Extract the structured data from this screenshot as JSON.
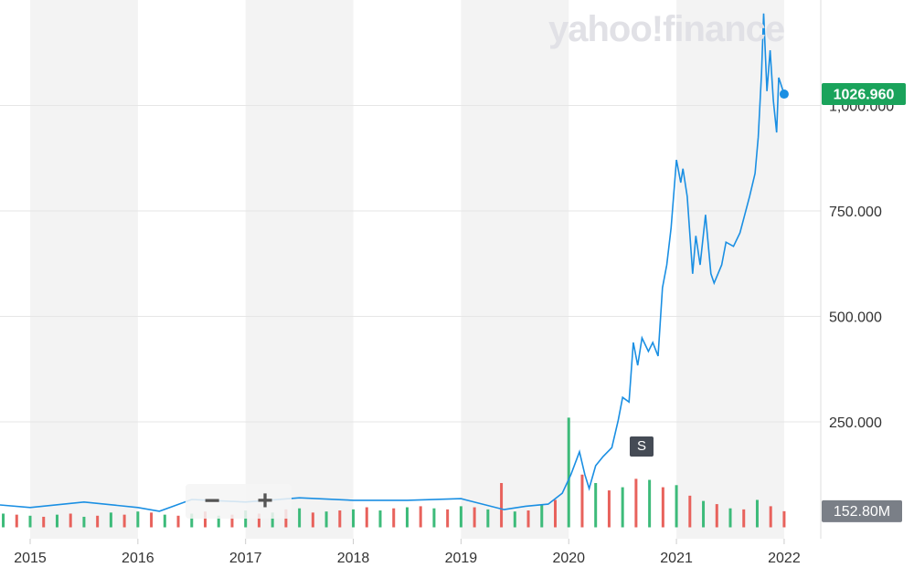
{
  "logo": "yahoo!finance",
  "zoom_controls": [
    "−",
    "+"
  ],
  "annotation": "S",
  "chart_data": {
    "type": "line",
    "xlim": [
      2014.72,
      2022.34
    ],
    "xticks": [
      2015,
      2016,
      2017,
      2018,
      2019,
      2020,
      2021,
      2022
    ],
    "ylim": [
      0,
      1250
    ],
    "yticks": [
      {
        "value": 250,
        "label": "250.000"
      },
      {
        "value": 500,
        "label": "500.000"
      },
      {
        "value": 750,
        "label": "750.000"
      },
      {
        "value": 1000,
        "label": "1,000.000"
      }
    ],
    "grid": true,
    "series": [
      {
        "color": "#1a8fe3",
        "last_label": "1026.960",
        "label_color": "#1aa35b",
        "x": [
          2014.72,
          2015.0,
          2015.5,
          2016.0,
          2016.2,
          2016.5,
          2017.0,
          2017.5,
          2018.0,
          2018.5,
          2019.0,
          2019.4,
          2019.6,
          2019.81,
          2019.94,
          2020.02,
          2020.1,
          2020.15,
          2020.19,
          2020.25,
          2020.32,
          2020.4,
          2020.46,
          2020.5,
          2020.56,
          2020.6,
          2020.64,
          2020.68,
          2020.74,
          2020.78,
          2020.83,
          2020.87,
          2020.91,
          2020.95,
          2021.0,
          2021.04,
          2021.06,
          2021.1,
          2021.15,
          2021.18,
          2021.22,
          2021.27,
          2021.32,
          2021.35,
          2021.42,
          2021.46,
          2021.53,
          2021.59,
          2021.68,
          2021.73,
          2021.76,
          2021.79,
          2021.81,
          2021.84,
          2021.87,
          2021.9,
          2021.93,
          2021.95,
          2022.0
        ],
        "values": [
          53,
          47,
          60,
          47,
          38,
          66,
          60,
          70,
          64,
          64,
          68,
          42,
          50,
          55,
          81,
          125,
          179,
          125,
          92,
          146,
          168,
          189,
          254,
          308,
          297,
          438,
          384,
          449,
          417,
          438,
          406,
          568,
          622,
          709,
          871,
          817,
          850,
          784,
          601,
          691,
          622,
          741,
          601,
          579,
          622,
          676,
          666,
          698,
          785,
          839,
          925,
          1077,
          1218,
          1034,
          1131,
          1012,
          936,
          1066,
          1026.96
        ]
      }
    ],
    "volume": {
      "y2lim": [
        0,
        5000
      ],
      "last_label": "152.80M",
      "series": [
        {
          "color": "#3dbb7a",
          "x": [
            2014.75,
            2015,
            2015.25,
            2015.5,
            2015.75,
            2016,
            2016.25,
            2016.5,
            2016.75,
            2017,
            2017.25,
            2017.5,
            2017.75,
            2018,
            2018.25,
            2018.5,
            2018.75,
            2019,
            2019.25,
            2019.5,
            2019.75,
            2020,
            2020.25,
            2020.5,
            2020.75,
            2021,
            2021.25,
            2021.5,
            2021.75
          ],
          "values": [
            130,
            110,
            120,
            100,
            140,
            150,
            120,
            130,
            110,
            160,
            140,
            180,
            150,
            170,
            160,
            190,
            180,
            200,
            170,
            150,
            210,
            1040,
            420,
            380,
            450,
            400,
            250,
            180,
            260
          ]
        },
        {
          "color": "#e8625c",
          "x": [
            2014.875,
            2015.125,
            2015.375,
            2015.625,
            2015.875,
            2016.125,
            2016.375,
            2016.625,
            2016.875,
            2017.125,
            2017.375,
            2017.625,
            2017.875,
            2018.125,
            2018.375,
            2018.625,
            2018.875,
            2019.125,
            2019.375,
            2019.625,
            2019.875,
            2020.125,
            2020.375,
            2020.625,
            2020.875,
            2021.125,
            2021.375,
            2021.625,
            2021.875,
            2022.0
          ],
          "values": [
            120,
            100,
            130,
            110,
            120,
            140,
            110,
            150,
            120,
            130,
            170,
            140,
            160,
            190,
            180,
            200,
            170,
            190,
            420,
            160,
            260,
            500,
            350,
            460,
            380,
            300,
            220,
            170,
            200,
            152.8
          ]
        }
      ]
    }
  }
}
